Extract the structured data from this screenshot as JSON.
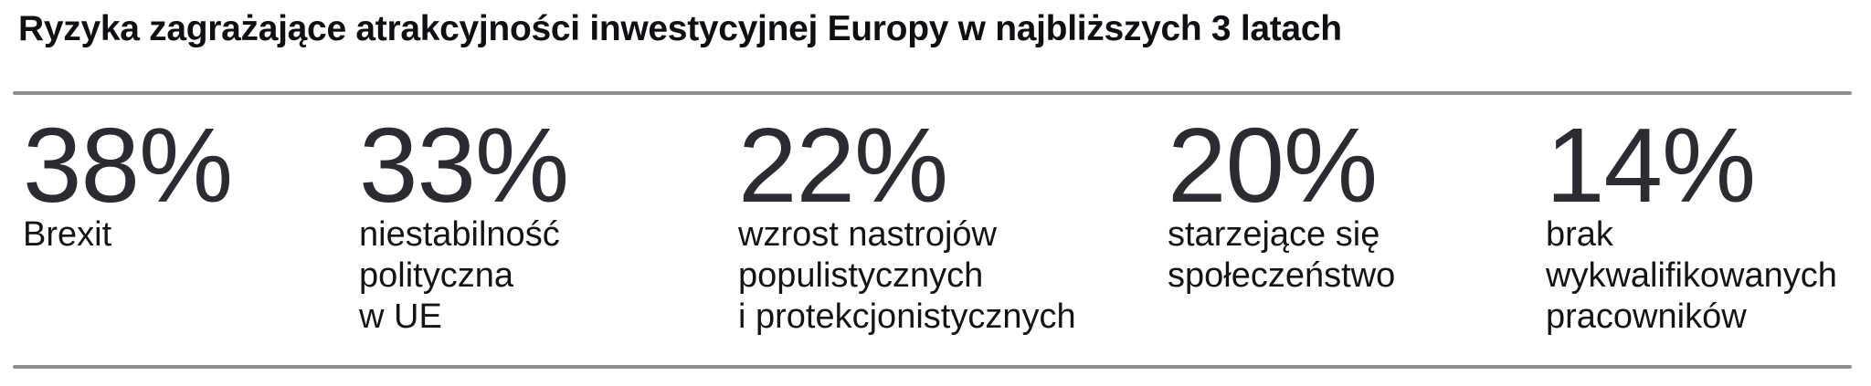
{
  "header": {
    "title": "Ryzyka zagrażające atrakcyjności inwestycyjnej Europy w najbliższych 3 latach"
  },
  "colors": {
    "background": "#ffffff",
    "title_text": "#101014",
    "value_text": "#2b2b31",
    "label_text": "#141417",
    "rule": "#8f8f8f"
  },
  "stats": {
    "items": [
      {
        "value": "38%",
        "label": "Brexit"
      },
      {
        "value": "33%",
        "label": "niestabilność\npolityczna\nw UE"
      },
      {
        "value": "22%",
        "label": "wzrost nastrojów\npopulistycznych\ni protekcjonistycznych"
      },
      {
        "value": "20%",
        "label": "starzejące się\nspołeczeństwo"
      },
      {
        "value": "14%",
        "label": "brak\nwykwalifikowanych\npracowników"
      }
    ]
  },
  "chart_data": {
    "type": "table",
    "title": "Ryzyka zagrażające atrakcyjności inwestycyjnej Europy w najbliższych 3 latach",
    "categories": [
      "Brexit",
      "niestabilność polityczna w UE",
      "wzrost nastrojów populistycznych i protekcjonistycznych",
      "starzejące się społeczeństwo",
      "brak wykwalifikowanych pracowników"
    ],
    "values": [
      38,
      33,
      22,
      20,
      14
    ],
    "unit": "%",
    "value_range": [
      0,
      100
    ],
    "layout": "five horizontal big-number stat columns between two gray horizontal rules"
  }
}
